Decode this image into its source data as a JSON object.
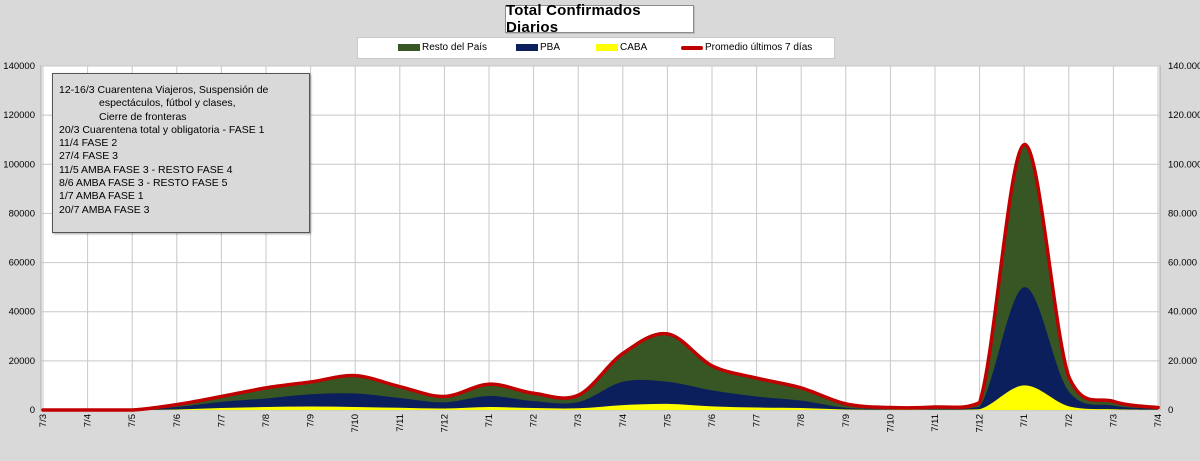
{
  "title": "Total  Confirmados  Diarios",
  "legend": [
    {
      "label": "Resto del País",
      "color": "#375623",
      "kind": "area"
    },
    {
      "label": "PBA",
      "color": "#0a1f5c",
      "kind": "area"
    },
    {
      "label": "CABA",
      "color": "#ffff00",
      "kind": "area"
    },
    {
      "label": "Promedio últimos 7 días",
      "color": "#c00000",
      "kind": "line"
    }
  ],
  "notes": [
    {
      "text": "12-16/3  Cuarentena Viajeros, Suspensión de",
      "indent": false
    },
    {
      "text": "espectáculos, fútbol y clases,",
      "indent": true
    },
    {
      "text": "Cierre de fronteras",
      "indent": true
    },
    {
      "text": "20/3 Cuarentena total y obligatoria - FASE 1",
      "indent": false
    },
    {
      "text": "11/4 FASE 2",
      "indent": false
    },
    {
      "text": "27/4 FASE 3",
      "indent": false
    },
    {
      "text": "11/5 AMBA FASE 3 - RESTO FASE 4",
      "indent": false
    },
    {
      "text": "8/6 AMBA FASE 3 - RESTO FASE 5",
      "indent": false
    },
    {
      "text": "1/7 AMBA FASE 1",
      "indent": false
    },
    {
      "text": "20/7 AMBA FASE 3",
      "indent": false
    }
  ],
  "chart_data": {
    "type": "area",
    "title": "Total  Confirmados  Diarios",
    "ylim": [
      0,
      140000
    ],
    "y_ticks_left": [
      "0",
      "20000",
      "40000",
      "60000",
      "80000",
      "100000",
      "120000",
      "140000"
    ],
    "y_ticks_right": [
      "0",
      "20.000",
      "40.000",
      "60.000",
      "80.000",
      "100.000",
      "120.000",
      "140.000"
    ],
    "x_tick_labels": [
      "7/3",
      "7/4",
      "7/5",
      "7/6",
      "7/7",
      "7/8",
      "7/9",
      "7/10",
      "7/11",
      "7/12",
      "7/1",
      "7/2",
      "7/3",
      "7/4",
      "7/5",
      "7/6",
      "7/7",
      "7/8",
      "7/9",
      "7/10",
      "7/11",
      "7/12",
      "7/1",
      "7/2",
      "7/3",
      "7/4"
    ],
    "x": [
      "7/3",
      "7/4",
      "7/5",
      "7/6",
      "7/7",
      "7/8",
      "7/9",
      "7/10",
      "7/11",
      "7/12",
      "7/1",
      "7/2",
      "7/3",
      "7/4",
      "7/5",
      "7/6",
      "7/7",
      "7/8",
      "7/9",
      "7/10",
      "7/11",
      "7/12",
      "7/1",
      "7/2",
      "7/3",
      "7/4"
    ],
    "grid": true,
    "legend_position": "top",
    "series": [
      {
        "name": "CABA",
        "color": "#ffff00",
        "values": [
          0,
          0,
          0,
          200,
          800,
          1200,
          1400,
          1200,
          900,
          600,
          1200,
          800,
          700,
          2000,
          2500,
          1500,
          1000,
          800,
          200,
          100,
          100,
          300,
          10000,
          1500,
          300,
          100
        ]
      },
      {
        "name": "PBA",
        "color": "#0a1f5c",
        "values": [
          0,
          0,
          0,
          1000,
          2500,
          3500,
          5000,
          5500,
          4000,
          2500,
          4500,
          2800,
          2500,
          9500,
          9000,
          6500,
          4500,
          3000,
          700,
          300,
          300,
          1000,
          40000,
          6000,
          1500,
          400
        ]
      },
      {
        "name": "Resto del País",
        "color": "#375623",
        "values": [
          0,
          0,
          0,
          1000,
          2200,
          4300,
          5000,
          7300,
          4600,
          2400,
          4800,
          3200,
          2800,
          11500,
          19500,
          10000,
          7500,
          5200,
          1600,
          600,
          800,
          1700,
          58000,
          6000,
          1700,
          500
        ]
      }
    ],
    "average": {
      "name": "Promedio últimos 7 días",
      "color": "#c00000",
      "values": [
        0,
        0,
        0,
        2200,
        5500,
        9000,
        11400,
        14000,
        9500,
        5500,
        10500,
        6800,
        6000,
        23000,
        31000,
        18000,
        13000,
        9000,
        2500,
        1000,
        1200,
        3000,
        108000,
        13500,
        3500,
        1000
      ]
    }
  }
}
